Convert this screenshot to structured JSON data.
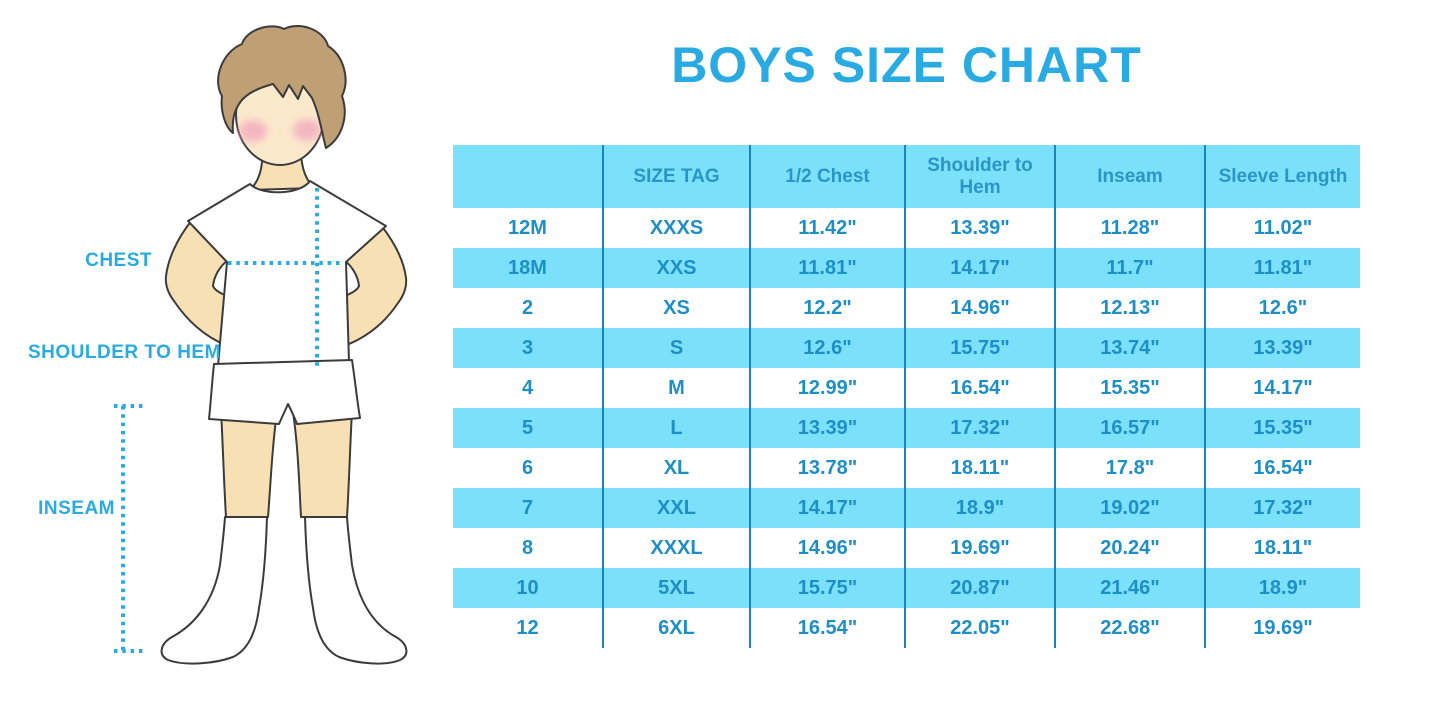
{
  "title": "BOYS SIZE CHART",
  "colors": {
    "accent": "#29ABE2",
    "tableFill": "#7BE0FA",
    "tableLine": "#1985BD",
    "headerText": "#2B96C5",
    "cellText": "#1E8FC6",
    "outline": "#3B3B3B",
    "hair": "#BFA075",
    "skin": "#F8E0B5",
    "face": "#FBE9CC",
    "blush": "#F2A9BE"
  },
  "figure": {
    "labels": {
      "chest": "CHEST",
      "shoulder_to_hem": "SHOULDER TO HEM",
      "inseam": "INSEAM"
    }
  },
  "chart_data": {
    "type": "table",
    "title": "BOYS SIZE CHART",
    "columns": [
      "",
      "SIZE TAG",
      "1/2 Chest",
      "Shoulder to Hem",
      "Inseam",
      "Sleeve Length"
    ],
    "rows": [
      [
        "12M",
        "XXXS",
        "11.42\"",
        "13.39\"",
        "11.28\"",
        "11.02\""
      ],
      [
        "18M",
        "XXS",
        "11.81\"",
        "14.17\"",
        "11.7\"",
        "11.81\""
      ],
      [
        "2",
        "XS",
        "12.2\"",
        "14.96\"",
        "12.13\"",
        "12.6\""
      ],
      [
        "3",
        "S",
        "12.6\"",
        "15.75\"",
        "13.74\"",
        "13.39\""
      ],
      [
        "4",
        "M",
        "12.99\"",
        "16.54\"",
        "15.35\"",
        "14.17\""
      ],
      [
        "5",
        "L",
        "13.39\"",
        "17.32\"",
        "16.57\"",
        "15.35\""
      ],
      [
        "6",
        "XL",
        "13.78\"",
        "18.11\"",
        "17.8\"",
        "16.54\""
      ],
      [
        "7",
        "XXL",
        "14.17\"",
        "18.9\"",
        "19.02\"",
        "17.32\""
      ],
      [
        "8",
        "XXXL",
        "14.96\"",
        "19.69\"",
        "20.24\"",
        "18.11\""
      ],
      [
        "10",
        "5XL",
        "15.75\"",
        "20.87\"",
        "21.46\"",
        "18.9\""
      ],
      [
        "12",
        "6XL",
        "16.54\"",
        "22.05\"",
        "22.68\"",
        "19.69\""
      ]
    ]
  }
}
